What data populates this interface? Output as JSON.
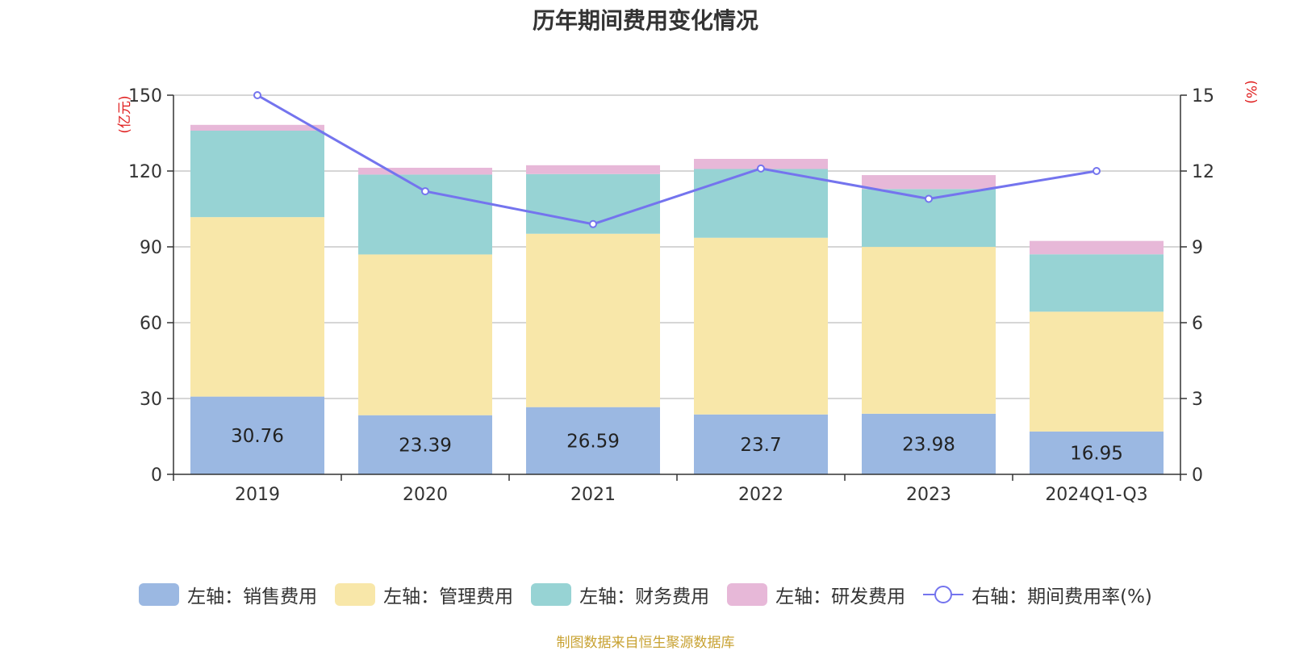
{
  "chart_data": {
    "type": "bar",
    "title": "历年期间费用变化情况",
    "categories": [
      "2019",
      "2020",
      "2021",
      "2022",
      "2023",
      "2024Q1-Q3"
    ],
    "left_axis": {
      "unit": "(亿元)",
      "ylim": [
        0,
        150
      ],
      "ticks": [
        0,
        30,
        60,
        90,
        120,
        150
      ]
    },
    "right_axis": {
      "unit": "(%)",
      "ylim": [
        0,
        15
      ],
      "ticks": [
        0,
        3,
        6,
        9,
        12,
        15
      ]
    },
    "stacked": true,
    "grid": true,
    "legend_position": "bottom",
    "series": [
      {
        "name": "左轴：销售费用",
        "axis": "left",
        "type": "bar",
        "color": "#9bb8e2",
        "values": [
          30.76,
          23.39,
          26.59,
          23.7,
          23.98,
          16.95
        ],
        "show_labels": true
      },
      {
        "name": "左轴：管理费用",
        "axis": "left",
        "type": "bar",
        "color": "#f8e7a9",
        "values": [
          71.0,
          63.6,
          68.6,
          69.9,
          66.0,
          47.4
        ],
        "show_labels": false
      },
      {
        "name": "左轴：财务费用",
        "axis": "left",
        "type": "bar",
        "color": "#97d3d4",
        "values": [
          34.2,
          31.6,
          23.6,
          27.2,
          22.9,
          22.7
        ],
        "show_labels": false
      },
      {
        "name": "左轴：研发费用",
        "axis": "left",
        "type": "bar",
        "color": "#e7b8d8",
        "values": [
          2.3,
          2.7,
          3.5,
          4.0,
          5.5,
          5.3
        ],
        "show_labels": false
      },
      {
        "name": "右轴：期间费用率(%)",
        "axis": "right",
        "type": "line",
        "color": "#7474ee",
        "values": [
          15.0,
          11.2,
          9.9,
          12.1,
          10.9,
          12.0
        ]
      }
    ]
  },
  "source_note": "制图数据来自恒生聚源数据库"
}
